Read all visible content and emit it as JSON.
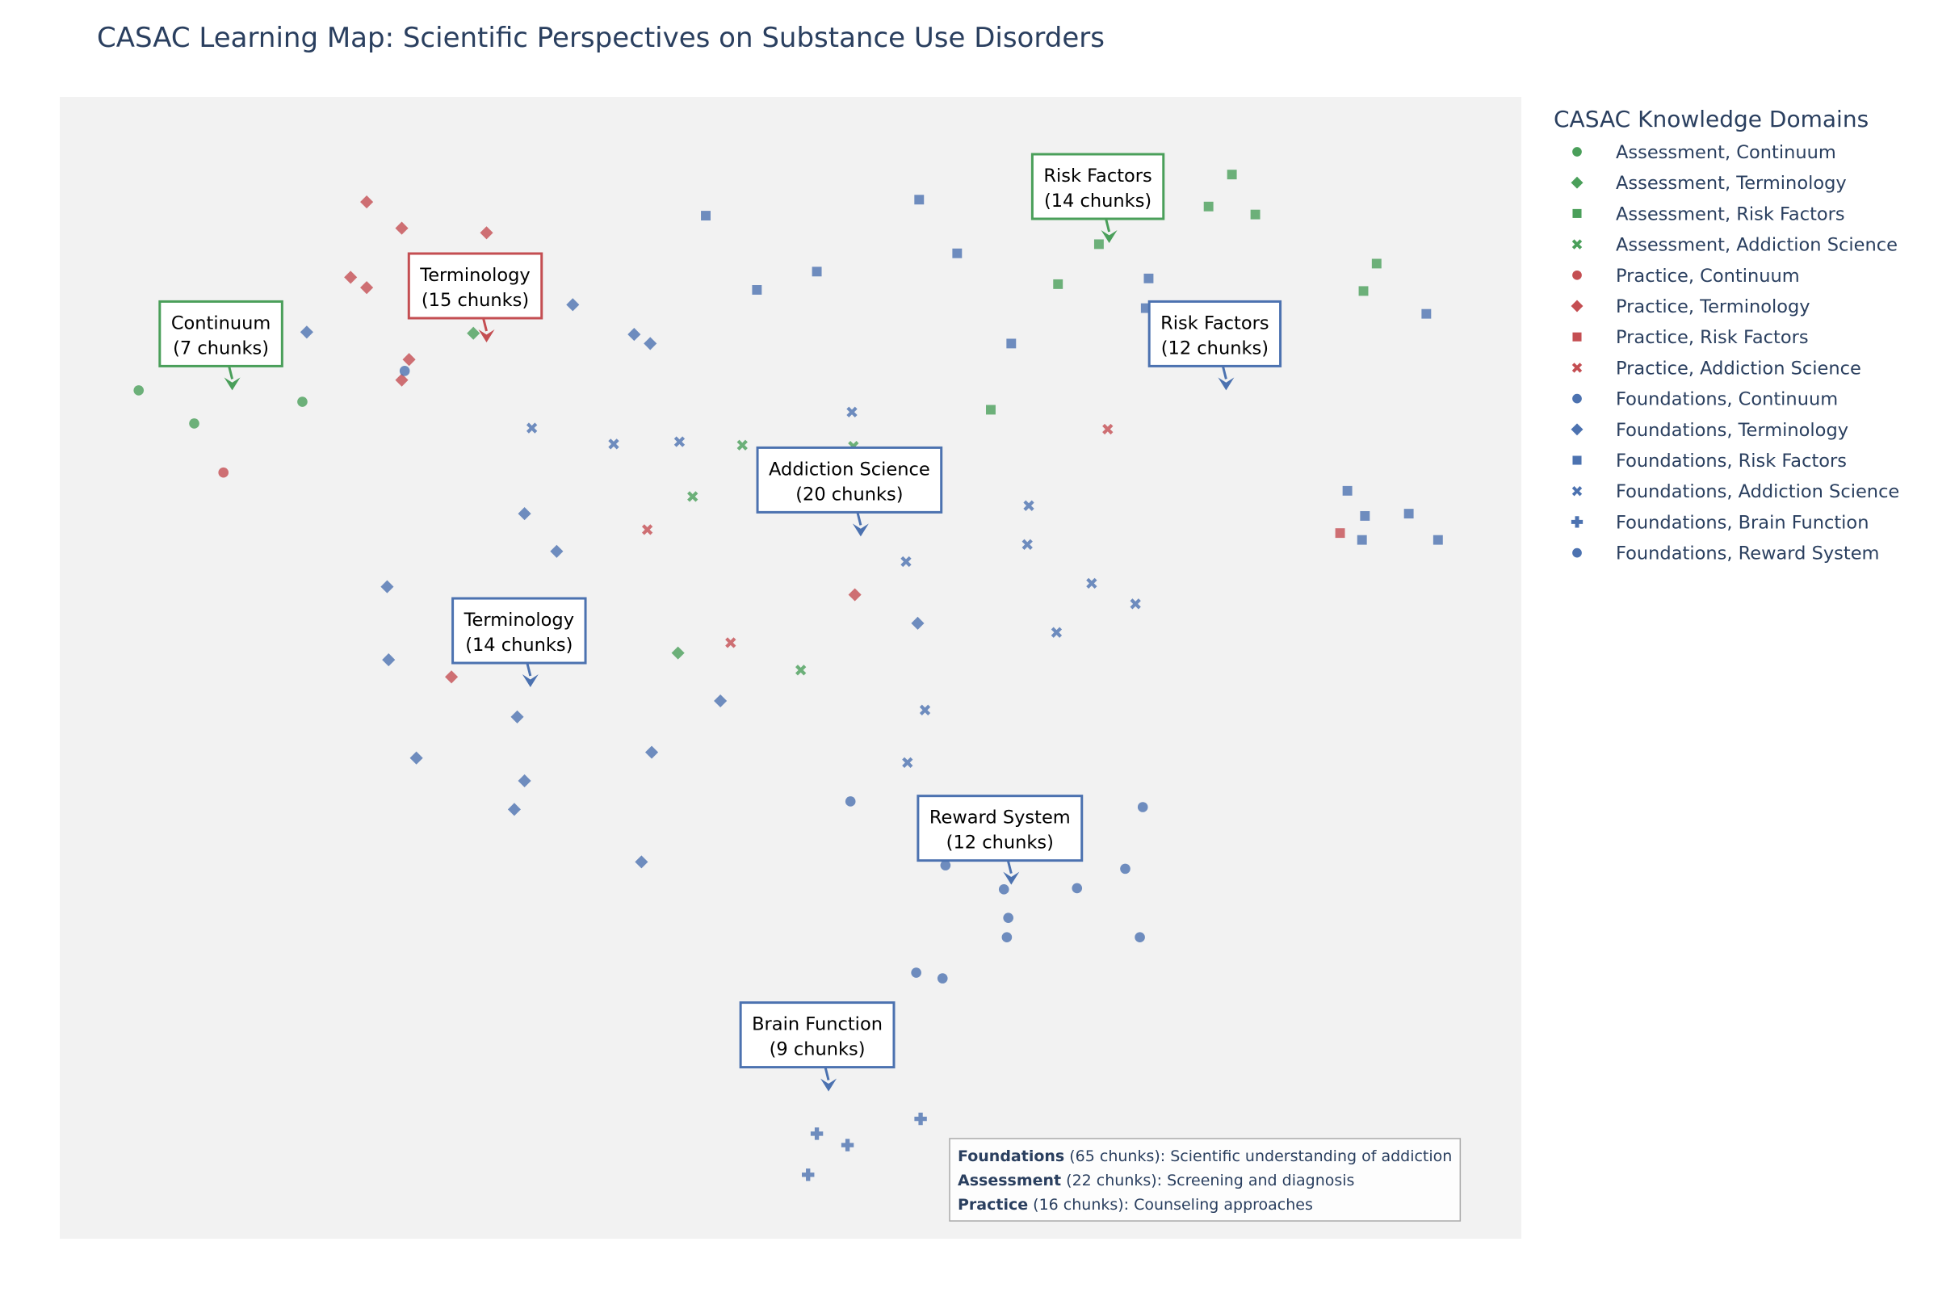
{
  "chart_data": {
    "type": "scatter",
    "title": "CASAC Learning Map: Scientific Perspectives on Substance Use Disorders",
    "xlabel": "",
    "ylabel": "",
    "xlim": [
      0,
      100
    ],
    "ylim": [
      0,
      100
    ],
    "grid": false,
    "legend_title": "CASAC Knowledge Domains",
    "legend_placement": "right",
    "series": [
      {
        "name": "Assessment, Continuum",
        "color": "#4a9f5a",
        "symbol": "circle",
        "points": [
          [
            5.4,
            74.3
          ],
          [
            9.2,
            71.4
          ],
          [
            16.6,
            73.3
          ]
        ]
      },
      {
        "name": "Assessment, Terminology",
        "color": "#4a9f5a",
        "symbol": "diamond",
        "points": [
          [
            28.3,
            79.3
          ],
          [
            42.3,
            51.3
          ]
        ]
      },
      {
        "name": "Assessment, Risk Factors",
        "color": "#4a9f5a",
        "symbol": "square",
        "points": [
          [
            74.5,
            94.6
          ],
          [
            75.1,
            93.5
          ],
          [
            80.2,
            93.2
          ],
          [
            78.6,
            90.4
          ],
          [
            81.8,
            89.7
          ],
          [
            71.1,
            87.1
          ],
          [
            68.3,
            83.6
          ],
          [
            90.1,
            85.4
          ],
          [
            89.2,
            83.0
          ],
          [
            63.7,
            72.6
          ]
        ]
      },
      {
        "name": "Assessment, Addiction Science",
        "color": "#4a9f5a",
        "symbol": "x",
        "points": [
          [
            46.7,
            69.5
          ],
          [
            54.3,
            69.4
          ],
          [
            43.3,
            65.0
          ],
          [
            50.7,
            49.8
          ]
        ]
      },
      {
        "name": "Practice, Continuum",
        "color": "#c44e52",
        "symbol": "circle",
        "points": [
          [
            11.2,
            67.1
          ]
        ]
      },
      {
        "name": "Practice, Terminology",
        "color": "#c44e52",
        "symbol": "diamond",
        "points": [
          [
            21.0,
            90.8
          ],
          [
            23.4,
            88.5
          ],
          [
            29.2,
            88.1
          ],
          [
            19.9,
            84.2
          ],
          [
            21.0,
            83.3
          ],
          [
            23.9,
            77.0
          ],
          [
            23.4,
            75.2
          ],
          [
            26.8,
            49.2
          ],
          [
            54.4,
            56.4
          ]
        ]
      },
      {
        "name": "Practice, Risk Factors",
        "color": "#c44e52",
        "symbol": "square",
        "points": [
          [
            87.6,
            61.8
          ]
        ]
      },
      {
        "name": "Practice, Addiction Science",
        "color": "#c44e52",
        "symbol": "x",
        "points": [
          [
            71.7,
            70.9
          ],
          [
            40.2,
            62.1
          ],
          [
            45.9,
            52.2
          ]
        ]
      },
      {
        "name": "Foundations, Continuum",
        "color": "#4c72b0",
        "symbol": "circle",
        "points": [
          [
            23.6,
            76.0
          ]
        ]
      },
      {
        "name": "Foundations, Terminology",
        "color": "#4c72b0",
        "symbol": "diamond",
        "points": [
          [
            16.9,
            79.4
          ],
          [
            35.1,
            81.8
          ],
          [
            39.3,
            79.2
          ],
          [
            40.4,
            78.4
          ],
          [
            31.8,
            63.5
          ],
          [
            34.0,
            60.2
          ],
          [
            22.4,
            57.1
          ],
          [
            22.5,
            50.7
          ],
          [
            31.3,
            45.7
          ],
          [
            24.4,
            42.1
          ],
          [
            31.8,
            40.1
          ],
          [
            31.1,
            37.6
          ],
          [
            40.5,
            42.6
          ],
          [
            45.2,
            47.1
          ],
          [
            39.8,
            33.0
          ],
          [
            58.7,
            53.9
          ]
        ]
      },
      {
        "name": "Foundations, Risk Factors",
        "color": "#4c72b0",
        "symbol": "square",
        "points": [
          [
            44.2,
            89.6
          ],
          [
            58.8,
            91.0
          ],
          [
            61.4,
            86.3
          ],
          [
            51.8,
            84.7
          ],
          [
            47.7,
            83.1
          ],
          [
            74.5,
            84.1
          ],
          [
            74.3,
            81.5
          ],
          [
            65.1,
            78.4
          ],
          [
            93.5,
            81.0
          ],
          [
            88.1,
            65.5
          ],
          [
            89.3,
            63.3
          ],
          [
            92.3,
            63.5
          ],
          [
            89.1,
            61.2
          ],
          [
            94.3,
            61.2
          ]
        ]
      },
      {
        "name": "Foundations, Addiction Science",
        "color": "#4c72b0",
        "symbol": "x",
        "points": [
          [
            32.3,
            71.0
          ],
          [
            37.9,
            69.6
          ],
          [
            42.4,
            69.8
          ],
          [
            54.2,
            72.4
          ],
          [
            66.3,
            64.2
          ],
          [
            66.2,
            60.8
          ],
          [
            57.9,
            59.3
          ],
          [
            70.6,
            57.4
          ],
          [
            73.6,
            55.6
          ],
          [
            68.2,
            53.1
          ],
          [
            59.2,
            46.3
          ],
          [
            58.0,
            41.7
          ]
        ]
      },
      {
        "name": "Foundations, Brain Function",
        "color": "#4c72b0",
        "symbol": "cross",
        "points": [
          [
            58.9,
            10.5
          ],
          [
            51.8,
            9.2
          ],
          [
            53.9,
            8.2
          ],
          [
            51.2,
            5.6
          ]
        ]
      },
      {
        "name": "Foundations, Reward System",
        "color": "#4c72b0",
        "symbol": "circle",
        "points": [
          [
            54.1,
            38.3
          ],
          [
            74.1,
            37.8
          ],
          [
            60.6,
            32.7
          ],
          [
            64.6,
            30.6
          ],
          [
            69.6,
            30.7
          ],
          [
            72.9,
            32.4
          ],
          [
            64.9,
            28.1
          ],
          [
            73.9,
            26.4
          ],
          [
            64.8,
            26.4
          ],
          [
            58.6,
            23.3
          ],
          [
            60.4,
            22.8
          ]
        ]
      }
    ],
    "annotations": [
      {
        "line1": "Continuum",
        "line2": "(7 chunks)",
        "color": "#4a9f5a",
        "x": 11.8,
        "y": 74.3
      },
      {
        "line1": "Terminology",
        "line2": "(15 chunks)",
        "color": "#c44e52",
        "x": 29.2,
        "y": 78.5
      },
      {
        "line1": "Risk Factors",
        "line2": "(14 chunks)",
        "color": "#4a9f5a",
        "x": 71.8,
        "y": 87.2
      },
      {
        "line1": "Risk Factors",
        "line2": "(12 chunks)",
        "color": "#4c72b0",
        "x": 79.8,
        "y": 74.3
      },
      {
        "line1": "Addiction Science",
        "line2": "(20 chunks)",
        "color": "#4c72b0",
        "x": 54.8,
        "y": 61.5
      },
      {
        "line1": "Terminology",
        "line2": "(14 chunks)",
        "color": "#4c72b0",
        "x": 32.2,
        "y": 48.3
      },
      {
        "line1": "Reward System",
        "line2": "(12 chunks)",
        "color": "#4c72b0",
        "x": 65.1,
        "y": 31.0
      },
      {
        "line1": "Brain Function",
        "line2": "(9 chunks)",
        "color": "#4c72b0",
        "x": 52.6,
        "y": 12.9
      }
    ],
    "note": [
      {
        "bold": "Foundations",
        "rest": " (65 chunks): Scientific understanding of addiction"
      },
      {
        "bold": "Assessment",
        "rest": " (22 chunks): Screening and diagnosis"
      },
      {
        "bold": "Practice",
        "rest": " (16 chunks): Counseling approaches"
      }
    ]
  }
}
